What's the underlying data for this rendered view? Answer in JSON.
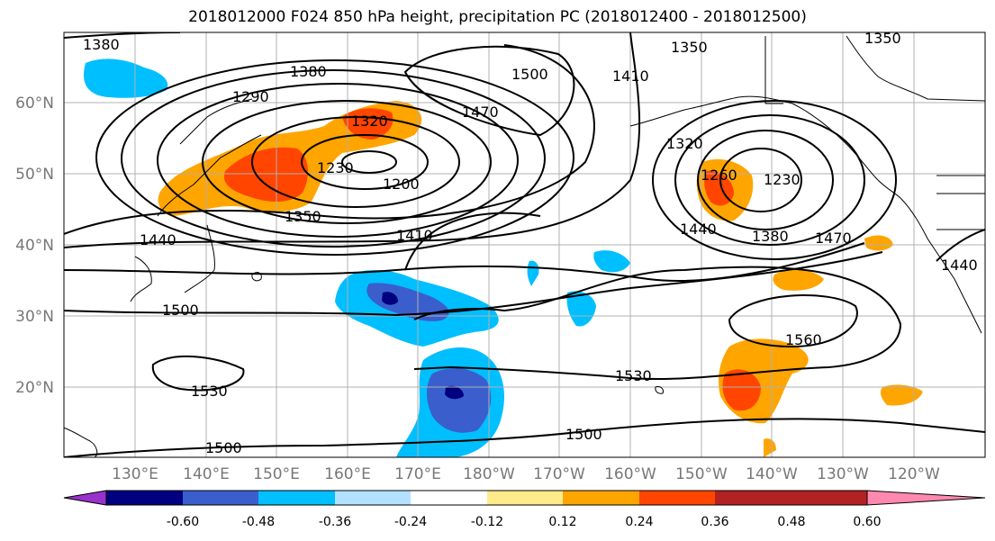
{
  "title": "2018012000 F024 850 hPa height, precipitation PC (2018012400 - 2018012500)",
  "lat_labels": [
    "60°N",
    "50°N",
    "40°N",
    "30°N",
    "20°N"
  ],
  "lon_labels": [
    "130°E",
    "140°E",
    "150°E",
    "160°E",
    "170°E",
    "180°W",
    "170°W",
    "160°W",
    "150°W",
    "140°W",
    "130°W",
    "120°W"
  ],
  "contour_labels": [
    "1380",
    "1380",
    "1290",
    "1320",
    "1230",
    "1200",
    "1350",
    "1440",
    "1410",
    "1470",
    "1500",
    "1350",
    "1410",
    "1320",
    "1260",
    "1230",
    "1440",
    "1380",
    "1470",
    "1440",
    "1500",
    "1560",
    "1530",
    "1530",
    "1500",
    "1500",
    "1350"
  ],
  "colorbar": {
    "tick_labels": [
      "-0.60",
      "-0.48",
      "-0.36",
      "-0.24",
      "-0.12",
      "0.12",
      "0.24",
      "0.36",
      "0.48",
      "0.60"
    ],
    "colors": [
      "#9932cc",
      "#000080",
      "#3a5fcd",
      "#00bfff",
      "#b2e2ff",
      "#ffffff",
      "#ffeb8a",
      "#ffa500",
      "#ff4500",
      "#b22222",
      "#ff88b0"
    ]
  }
}
